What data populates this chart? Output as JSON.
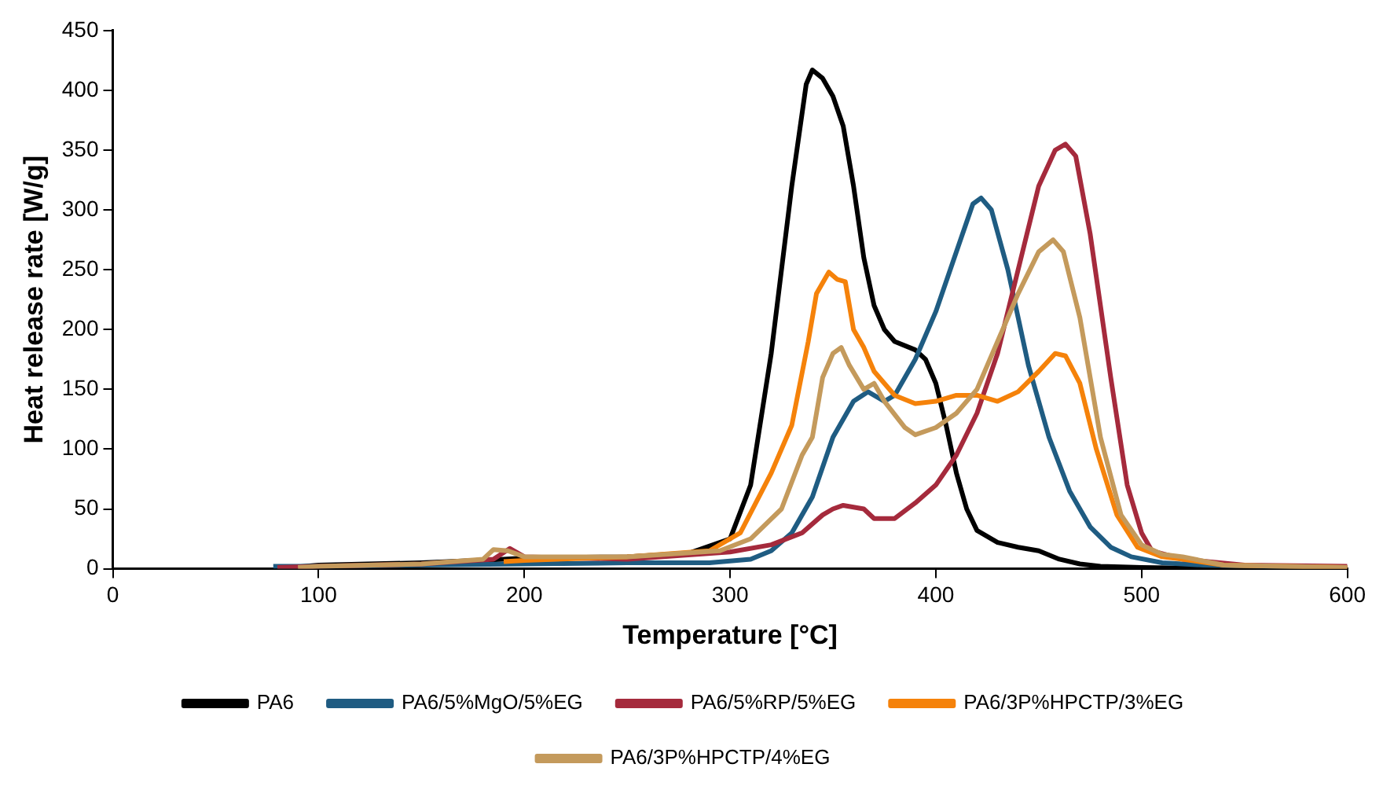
{
  "chart_data": {
    "type": "line",
    "xlabel": "Temperature [°C]",
    "ylabel": "Heat release rate [W/g]",
    "xlim": [
      0,
      600
    ],
    "ylim": [
      0,
      450
    ],
    "xticks": [
      0,
      100,
      200,
      300,
      400,
      500,
      600
    ],
    "yticks": [
      0,
      50,
      100,
      150,
      200,
      250,
      300,
      350,
      400,
      450
    ],
    "grid": false,
    "legend": "bottom",
    "marker": "none",
    "line_style": "solid",
    "series": [
      {
        "name": "PA6",
        "color": "#000000",
        "x": [
          80,
          100,
          150,
          190,
          200,
          250,
          280,
          300,
          310,
          320,
          330,
          337,
          340,
          345,
          350,
          355,
          360,
          365,
          370,
          375,
          380,
          390,
          395,
          400,
          405,
          410,
          415,
          420,
          430,
          440,
          450,
          460,
          470,
          480,
          500,
          550,
          600
        ],
        "values": [
          0,
          3,
          5,
          8,
          9,
          10,
          13,
          25,
          70,
          180,
          320,
          405,
          417,
          410,
          395,
          370,
          320,
          260,
          220,
          200,
          190,
          183,
          175,
          155,
          120,
          80,
          50,
          32,
          22,
          18,
          15,
          8,
          4,
          2,
          1,
          0,
          0
        ]
      },
      {
        "name": "PA6/5%MgO/5%EG",
        "color": "#1f5c82",
        "x": [
          78,
          100,
          200,
          250,
          290,
          310,
          320,
          330,
          340,
          350,
          360,
          367,
          375,
          380,
          390,
          400,
          410,
          418,
          422,
          427,
          435,
          445,
          455,
          465,
          475,
          485,
          495,
          510,
          530,
          560,
          600
        ],
        "values": [
          2,
          2,
          4,
          5,
          5,
          8,
          15,
          30,
          60,
          110,
          140,
          148,
          140,
          145,
          175,
          215,
          265,
          305,
          310,
          300,
          250,
          170,
          110,
          65,
          35,
          18,
          10,
          5,
          3,
          2,
          1
        ]
      },
      {
        "name": "PA6/5%RP/5%EG",
        "color": "#a52a3c",
        "x": [
          80,
          100,
          150,
          185,
          193,
          200,
          250,
          300,
          320,
          335,
          345,
          350,
          355,
          365,
          370,
          380,
          390,
          400,
          410,
          420,
          430,
          440,
          450,
          458,
          463,
          468,
          475,
          485,
          493,
          500,
          505,
          520,
          550,
          600
        ],
        "values": [
          1,
          2,
          4,
          8,
          17,
          10,
          8,
          14,
          20,
          30,
          45,
          50,
          53,
          50,
          42,
          42,
          55,
          70,
          95,
          130,
          180,
          250,
          320,
          350,
          355,
          345,
          280,
          160,
          70,
          30,
          15,
          8,
          3,
          2
        ]
      },
      {
        "name": "PA6/3P%HPCTP/3%EG",
        "color": "#f5820a",
        "x": [
          190,
          200,
          250,
          290,
          305,
          320,
          330,
          338,
          342,
          348,
          352,
          356,
          360,
          365,
          370,
          380,
          390,
          400,
          410,
          420,
          430,
          440,
          450,
          458,
          463,
          470,
          478,
          488,
          498,
          510,
          520,
          540,
          600
        ],
        "values": [
          6,
          7,
          10,
          15,
          30,
          80,
          120,
          190,
          230,
          248,
          242,
          240,
          200,
          185,
          165,
          145,
          138,
          140,
          145,
          145,
          140,
          148,
          165,
          180,
          178,
          155,
          100,
          45,
          18,
          10,
          8,
          3,
          1
        ]
      },
      {
        "name": "PA6/3P%HPCTP/4%EG",
        "color": "#c49a5c",
        "x": [
          90,
          100,
          150,
          180,
          185,
          192,
          200,
          250,
          295,
          310,
          325,
          335,
          340,
          345,
          350,
          354,
          358,
          365,
          370,
          375,
          385,
          390,
          400,
          410,
          420,
          430,
          440,
          450,
          457,
          462,
          470,
          480,
          490,
          500,
          510,
          520,
          540,
          600
        ],
        "values": [
          1,
          2,
          4,
          8,
          16,
          15,
          10,
          10,
          15,
          25,
          50,
          95,
          110,
          160,
          180,
          185,
          170,
          150,
          155,
          140,
          118,
          112,
          118,
          130,
          150,
          190,
          230,
          265,
          275,
          265,
          210,
          110,
          45,
          20,
          12,
          10,
          3,
          1
        ]
      }
    ]
  }
}
